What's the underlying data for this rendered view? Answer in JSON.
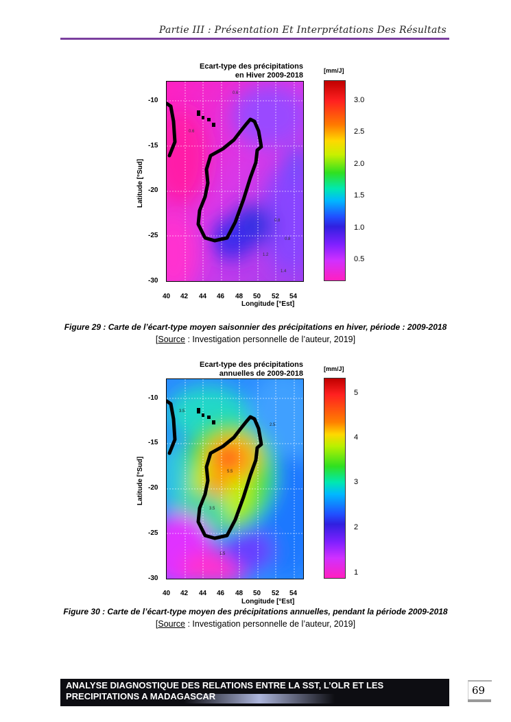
{
  "header": {
    "title": "Partie III : Présentation Et Interprétations Des Résultats"
  },
  "figures": [
    {
      "map_title": "Ecart-type des précipitations\nen Hiver 2009-2018",
      "unit": "[mm/J]",
      "ylabel": "Latitude [°Sud]",
      "xlabel": "Longitude [°Est]",
      "yticks": [
        "-10",
        "-15",
        "-20",
        "-25",
        "-30"
      ],
      "xticks": [
        "40",
        "42",
        "44",
        "46",
        "48",
        "50",
        "52",
        "54"
      ],
      "cbar_ticks": [
        "3.0",
        "2.5",
        "2.0",
        "1.5",
        "1.0",
        "0.5"
      ],
      "caption": "Figure 29 : Carte de l’écart-type moyen saisonnier des précipitations en hiver, période : 2009-2018",
      "source_word": "Source",
      "source_rest": " : Investigation personnelle de l’auteur, 2019]",
      "source_open": "["
    },
    {
      "map_title": "Ecart-type des précipitations\nannuelles de 2009-2018",
      "unit": "[mm/J]",
      "ylabel": "Latitude [°Sud]",
      "xlabel": "Longitude [°Est]",
      "yticks": [
        "-10",
        "-15",
        "-20",
        "-25",
        "-30"
      ],
      "xticks": [
        "40",
        "42",
        "44",
        "46",
        "48",
        "50",
        "52",
        "54"
      ],
      "cbar_ticks": [
        "5",
        "4",
        "3",
        "2",
        "1"
      ],
      "caption": "Figure 30 : Carte de l’écart-type moyen des précipitations annuelles, pendant la période 2009-2018",
      "source_word": "Source",
      "source_rest": " : Investigation personnelle de l’auteur, 2019]",
      "source_open": "["
    }
  ],
  "footer": {
    "line1": "ANALYSE DIAGNOSTIQUE DES RELATIONS ENTRE LA SST, L’OLR ET LES",
    "line2": "PRECIPITATIONS A MADAGASCAR"
  },
  "page_number": "69",
  "colors": {
    "header_rule": "#7b3f9e",
    "footer_bg": "#0d0d12"
  }
}
